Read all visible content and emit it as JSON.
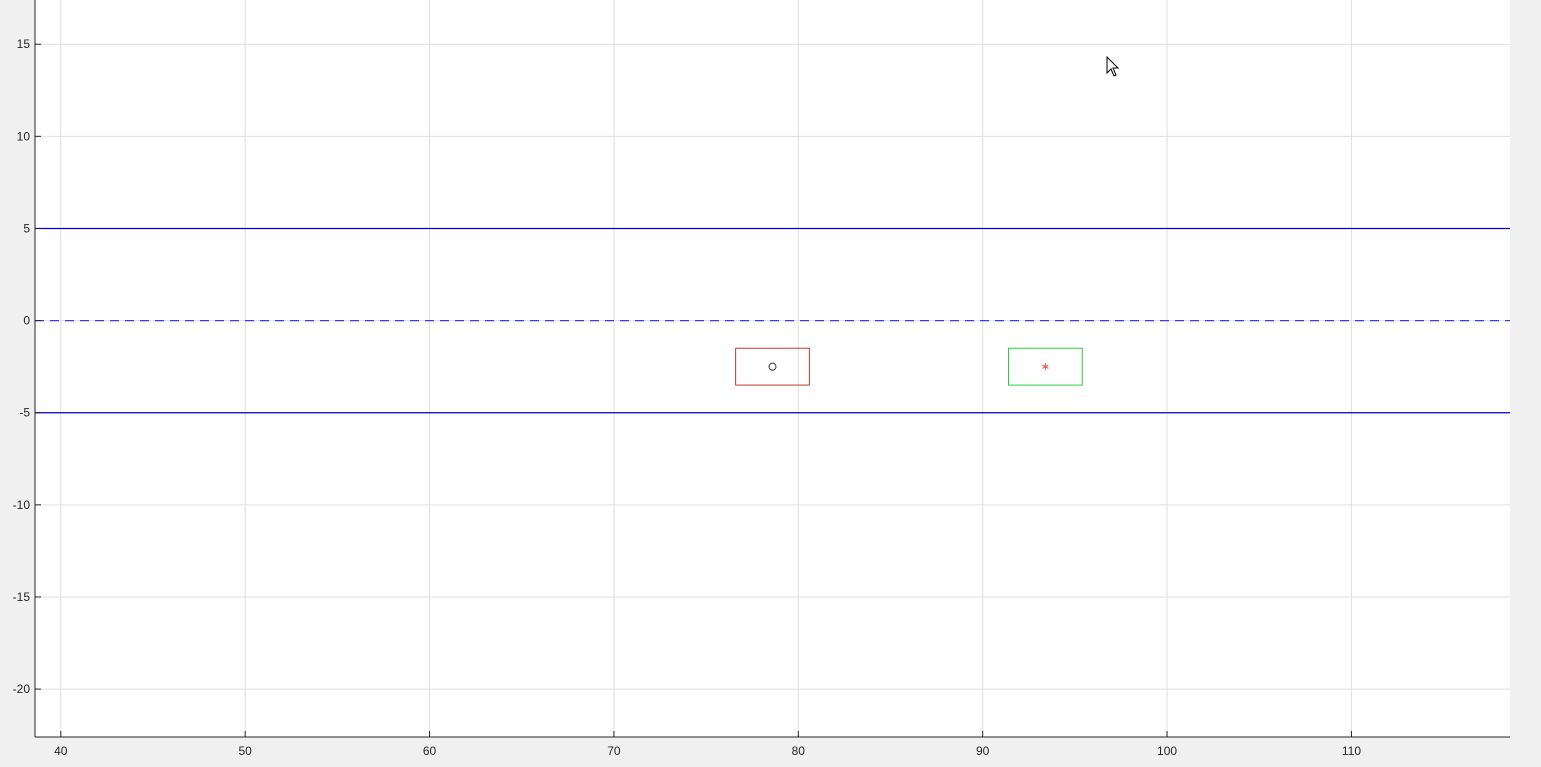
{
  "chart_data": {
    "type": "line",
    "title": "",
    "xlabel": "",
    "ylabel": "",
    "xlim": [
      38.6,
      118.6
    ],
    "ylim": [
      -22.6,
      17.4
    ],
    "x_ticks": [
      40,
      50,
      60,
      70,
      80,
      90,
      100,
      110
    ],
    "y_ticks": [
      15,
      10,
      5,
      0,
      -5,
      -10,
      -15,
      -20
    ],
    "grid": true,
    "series": [
      {
        "style": "solid",
        "color": "#0000c8",
        "x": [
          38.6,
          118.6
        ],
        "y": [
          5,
          5
        ]
      },
      {
        "style": "dashed",
        "color": "#3c3cdc",
        "x": [
          38.6,
          118.6
        ],
        "y": [
          0,
          0
        ]
      },
      {
        "style": "solid",
        "color": "#0000c8",
        "x": [
          38.6,
          118.6
        ],
        "y": [
          -5,
          -5
        ]
      }
    ],
    "objects": [
      {
        "shape": "rectangle",
        "color": "#c0392b",
        "x_range": [
          76.6,
          80.6
        ],
        "y_range": [
          -3.5,
          -1.5
        ],
        "marker": "o",
        "marker_color": "#333333",
        "marker_at": [
          78.6,
          -2.5
        ]
      },
      {
        "shape": "rectangle",
        "color": "#2ecc40",
        "x_range": [
          91.4,
          95.4
        ],
        "y_range": [
          -3.5,
          -1.5
        ],
        "marker": "*",
        "marker_color": "#d9534f",
        "marker_at": [
          93.4,
          -2.5
        ]
      }
    ]
  },
  "colors": {
    "figure_bg": "#f0f0f0",
    "axes_bg": "#ffffff",
    "grid": "#dfdfdf",
    "axis": "#262626"
  }
}
